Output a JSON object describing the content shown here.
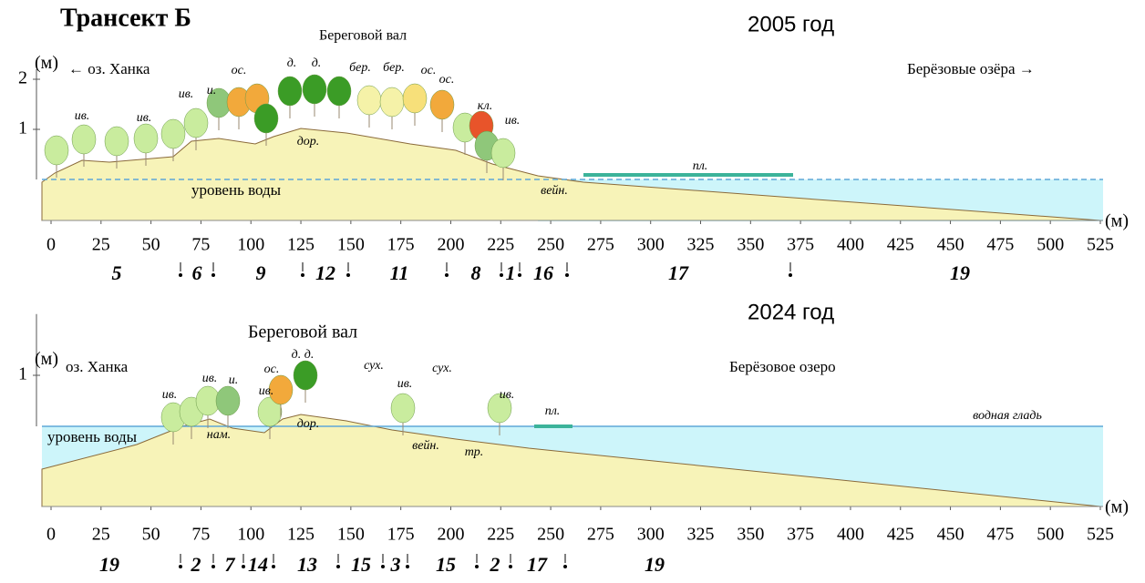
{
  "title": "Трансект Б",
  "panels": [
    {
      "year": "2005 год",
      "heading": "Береговой вал",
      "y_unit": "(м)",
      "x_unit": "(м)",
      "yticks": [
        1,
        2
      ],
      "xticks": [
        0,
        25,
        50,
        75,
        100,
        125,
        150,
        175,
        200,
        225,
        250,
        275,
        300,
        325,
        350,
        375,
        400,
        425,
        450,
        475,
        500,
        525
      ],
      "labels": [
        "← оз. Ханка",
        "Берёзовые озёра →",
        "ив.",
        "ив.",
        "ив.",
        "и.",
        "ос.",
        "д.",
        "д.",
        "бер.",
        "бер.",
        "ос.",
        "ос.",
        "кл.",
        "ив.",
        "дор.",
        "пл.",
        "уровень воды",
        "вейн."
      ],
      "zones": [
        "5",
        "6",
        "9",
        "12",
        "11",
        "8",
        "1",
        "16",
        "17",
        "19"
      ]
    },
    {
      "year": "2024 год",
      "heading": "Береговой вал",
      "y_unit": "(м)",
      "x_unit": "(м)",
      "yticks": [
        1
      ],
      "xticks": [
        0,
        25,
        50,
        75,
        100,
        125,
        150,
        175,
        200,
        225,
        250,
        275,
        300,
        325,
        350,
        375,
        400,
        425,
        450,
        475,
        500,
        525
      ],
      "labels": [
        "оз. Ханка",
        "Берёзовое озеро",
        "ив.",
        "ив.",
        "и.",
        "ос.",
        "ив.",
        "д. д.",
        "сух.",
        "сух.",
        "ив.",
        "ив.",
        "пл.",
        "водная гладь",
        "уровень воды",
        "нам.",
        "дор.",
        "вейн.",
        "тр."
      ],
      "zones": [
        "19",
        "2",
        "7",
        "14",
        "13",
        "15",
        "3",
        "15",
        "2",
        "17",
        "19"
      ]
    }
  ]
}
